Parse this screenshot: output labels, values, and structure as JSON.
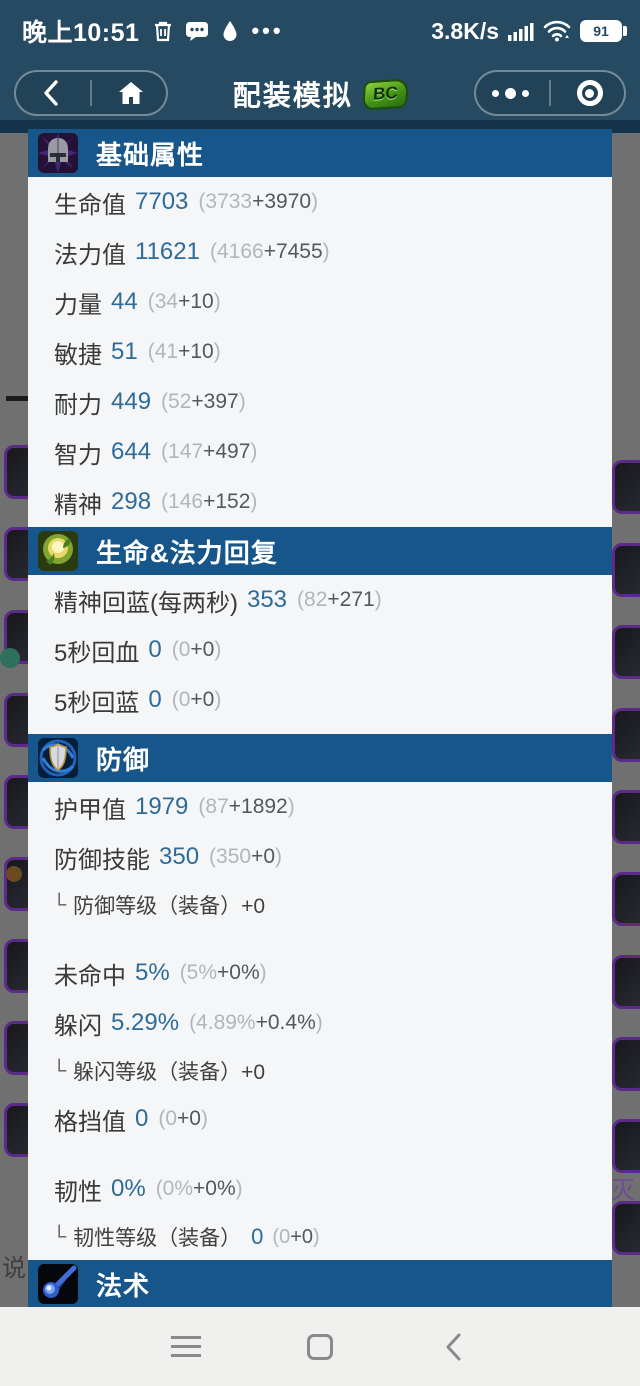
{
  "status_bar": {
    "time": "晚上10:51",
    "notification_icons": [
      "trash-icon",
      "chat-icon",
      "drop-icon",
      "more-dots"
    ],
    "net_speed": "3.8K/s",
    "signal_icon": "signal-bars",
    "wifi_icon": "wifi",
    "battery_percent": "91"
  },
  "header": {
    "back_icon": "chevron-left",
    "home_icon": "home",
    "title": "配装模拟",
    "badge": "BC",
    "more_icon": "three-dots",
    "exit_icon": "circle-dot"
  },
  "colors": {
    "header_bg": "#254a61",
    "section_bar": "#16568a",
    "panel_bg": "#f5f6f7",
    "value_blue": "#2e6b99",
    "dim_overlay_gray": "#707070",
    "epic_border_purple": "#5c2b8a"
  },
  "sections": [
    {
      "title": "基础属性",
      "icon": "helmet-icon",
      "rows": [
        {
          "t": "main",
          "label": "生命值",
          "value": "7703",
          "base": "3733",
          "bonus": "+3970"
        },
        {
          "t": "main",
          "label": "法力值",
          "value": "11621",
          "base": "4166",
          "bonus": "+7455"
        },
        {
          "t": "main",
          "label": "力量",
          "value": "44",
          "base": "34",
          "bonus": "+10"
        },
        {
          "t": "main",
          "label": "敏捷",
          "value": "51",
          "base": "41",
          "bonus": "+10"
        },
        {
          "t": "main",
          "label": "耐力",
          "value": "449",
          "base": "52",
          "bonus": "+397"
        },
        {
          "t": "main",
          "label": "智力",
          "value": "644",
          "base": "147",
          "bonus": "+497"
        },
        {
          "t": "main",
          "label": "精神",
          "value": "298",
          "base": "146",
          "bonus": "+152"
        }
      ]
    },
    {
      "title": "生命&法力回复",
      "icon": "regen-icon",
      "pad_bottom": true,
      "rows": [
        {
          "t": "main",
          "label": "精神回蓝(每两秒)",
          "value": "353",
          "base": "82",
          "bonus": "+271"
        },
        {
          "t": "main",
          "label": "5秒回血",
          "value": "0",
          "base": "0",
          "bonus": "+0"
        },
        {
          "t": "main",
          "label": "5秒回蓝",
          "value": "0",
          "base": "0",
          "bonus": "+0"
        }
      ]
    },
    {
      "title": "防御",
      "icon": "shield-icon",
      "rows": [
        {
          "t": "main",
          "label": "护甲值",
          "value": "1979",
          "base": "87",
          "bonus": "+1892"
        },
        {
          "t": "main",
          "label": "防御技能",
          "value": "350",
          "base": "350",
          "bonus": "+0"
        },
        {
          "t": "sub",
          "label": "防御等级（装备）+0"
        },
        {
          "t": "gap"
        },
        {
          "t": "main",
          "label": "未命中",
          "value": "5%",
          "base": "5%",
          "bonus": "+0%"
        },
        {
          "t": "main",
          "label": "躲闪",
          "value": "5.29%",
          "base": "4.89%",
          "bonus": "+0.4%"
        },
        {
          "t": "sub",
          "label": "躲闪等级（装备）+0"
        },
        {
          "t": "main",
          "label": "格挡值",
          "value": "0",
          "base": "0",
          "bonus": "+0"
        },
        {
          "t": "gap"
        },
        {
          "t": "main",
          "label": "韧性",
          "value": "0%",
          "base": "0%",
          "bonus": "+0%"
        },
        {
          "t": "sub",
          "label": "韧性等级（装备）",
          "value": "0",
          "base": "0",
          "bonus": "+0"
        }
      ]
    },
    {
      "title": "法术",
      "icon": "spell-icon",
      "rows": []
    }
  ],
  "background_page": {
    "left_partial_char": "说",
    "right_partial_char": "灭"
  },
  "system_nav": {
    "buttons": [
      "recents",
      "home",
      "back"
    ]
  }
}
